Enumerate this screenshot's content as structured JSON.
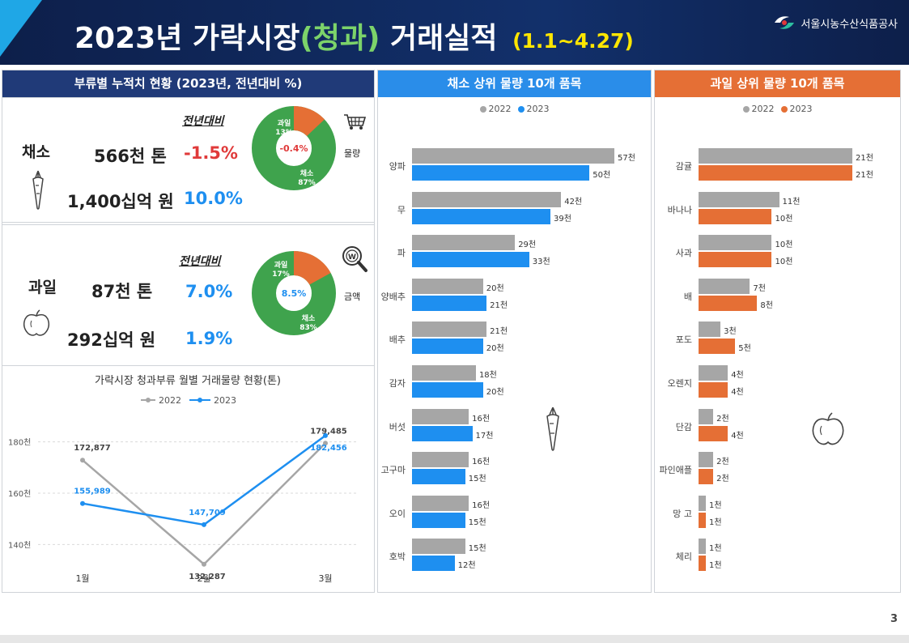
{
  "header": {
    "title_prefix": "2023년 가락시장",
    "title_highlight": "(청과)",
    "title_suffix": "거래실적",
    "title_date": "(1.1~4.27)",
    "org_name": "서울시농수산식품공사"
  },
  "page_number": "3",
  "summary": {
    "title": "부류별 누적치 현황 (2023년, 전년대비 %)",
    "yoy_label": "전년대비",
    "vegetable": {
      "name": "채소",
      "volume": "566천 톤",
      "volume_change": "-1.5%",
      "amount": "1,400십억 원",
      "amount_change": "10.0%"
    },
    "fruit": {
      "name": "과일",
      "volume": "87천  톤",
      "volume_change": "7.0%",
      "amount": "292십억 원",
      "amount_change": "1.9%"
    },
    "donut_volume": {
      "label": "물량",
      "center": "-0.4%",
      "slices": [
        {
          "name": "과일",
          "pct": "13%",
          "value": 13,
          "color": "#e56f35"
        },
        {
          "name": "채소",
          "pct": "87%",
          "value": 87,
          "color": "#3fa34d"
        }
      ]
    },
    "donut_amount": {
      "label": "금액",
      "center": "8.5%",
      "slices": [
        {
          "name": "과일",
          "pct": "17%",
          "value": 17,
          "color": "#e56f35"
        },
        {
          "name": "채소",
          "pct": "83%",
          "value": 83,
          "color": "#3fa34d"
        }
      ]
    }
  },
  "colors": {
    "y2022": "#a6a6a6",
    "y2023_blue": "#1e8ff0",
    "y2023_orange": "#e56f35",
    "green": "#3fa34d"
  },
  "chart_data": [
    {
      "type": "line",
      "title": "가락시장 청과부류 월별 거래물량 현황(톤)",
      "categories": [
        "1월",
        "2월",
        "3월"
      ],
      "ylim": [
        130000,
        190000
      ],
      "yticks": [
        "140천",
        "160천",
        "180천"
      ],
      "ytick_values": [
        140000,
        160000,
        180000
      ],
      "series": [
        {
          "name": "2022",
          "values": [
            172877,
            132287,
            179485
          ],
          "labels": [
            "172,877",
            "132,287",
            "179,485"
          ],
          "color": "#a6a6a6"
        },
        {
          "name": "2023",
          "values": [
            155989,
            147709,
            182456
          ],
          "labels": [
            "155,989",
            "147,709",
            "182,456"
          ],
          "color": "#1e8ff0"
        }
      ],
      "legend": "top"
    },
    {
      "type": "bar",
      "title": "채소 상위 물량 10개 품목",
      "categories": [
        "양파",
        "무",
        "파",
        "양배추",
        "배추",
        "감자",
        "버섯",
        "고구마",
        "오이",
        "호박"
      ],
      "series": [
        {
          "name": "2022",
          "values": [
            57,
            42,
            29,
            20,
            21,
            18,
            16,
            16,
            16,
            15
          ],
          "labels": [
            "57천",
            "42천",
            "29천",
            "20천",
            "21천",
            "18천",
            "16천",
            "16천",
            "16천",
            "15천"
          ]
        },
        {
          "name": "2023",
          "values": [
            50,
            39,
            33,
            21,
            20,
            20,
            17,
            15,
            15,
            12
          ],
          "labels": [
            "50천",
            "39천",
            "33천",
            "21천",
            "20천",
            "20천",
            "17천",
            "15천",
            "15천",
            "12천"
          ]
        }
      ],
      "legend": "top"
    },
    {
      "type": "bar",
      "title": "과일 상위 물량 10개 품목",
      "categories": [
        "감귤",
        "바나나",
        "사과",
        "배",
        "포도",
        "오렌지",
        "단감",
        "파인애플",
        "망 고",
        "체리"
      ],
      "series": [
        {
          "name": "2022",
          "values": [
            21,
            11,
            10,
            7,
            3,
            4,
            2,
            2,
            1,
            1
          ],
          "labels": [
            "21천",
            "11천",
            "10천",
            "7천",
            "3천",
            "4천",
            "2천",
            "2천",
            "1천",
            "1천"
          ]
        },
        {
          "name": "2023",
          "values": [
            21,
            10,
            10,
            8,
            5,
            4,
            4,
            2,
            1,
            1
          ],
          "labels": [
            "21천",
            "10천",
            "10천",
            "8천",
            "5천",
            "4천",
            "4천",
            "2천",
            "1천",
            "1천"
          ]
        }
      ],
      "legend": "top"
    }
  ]
}
